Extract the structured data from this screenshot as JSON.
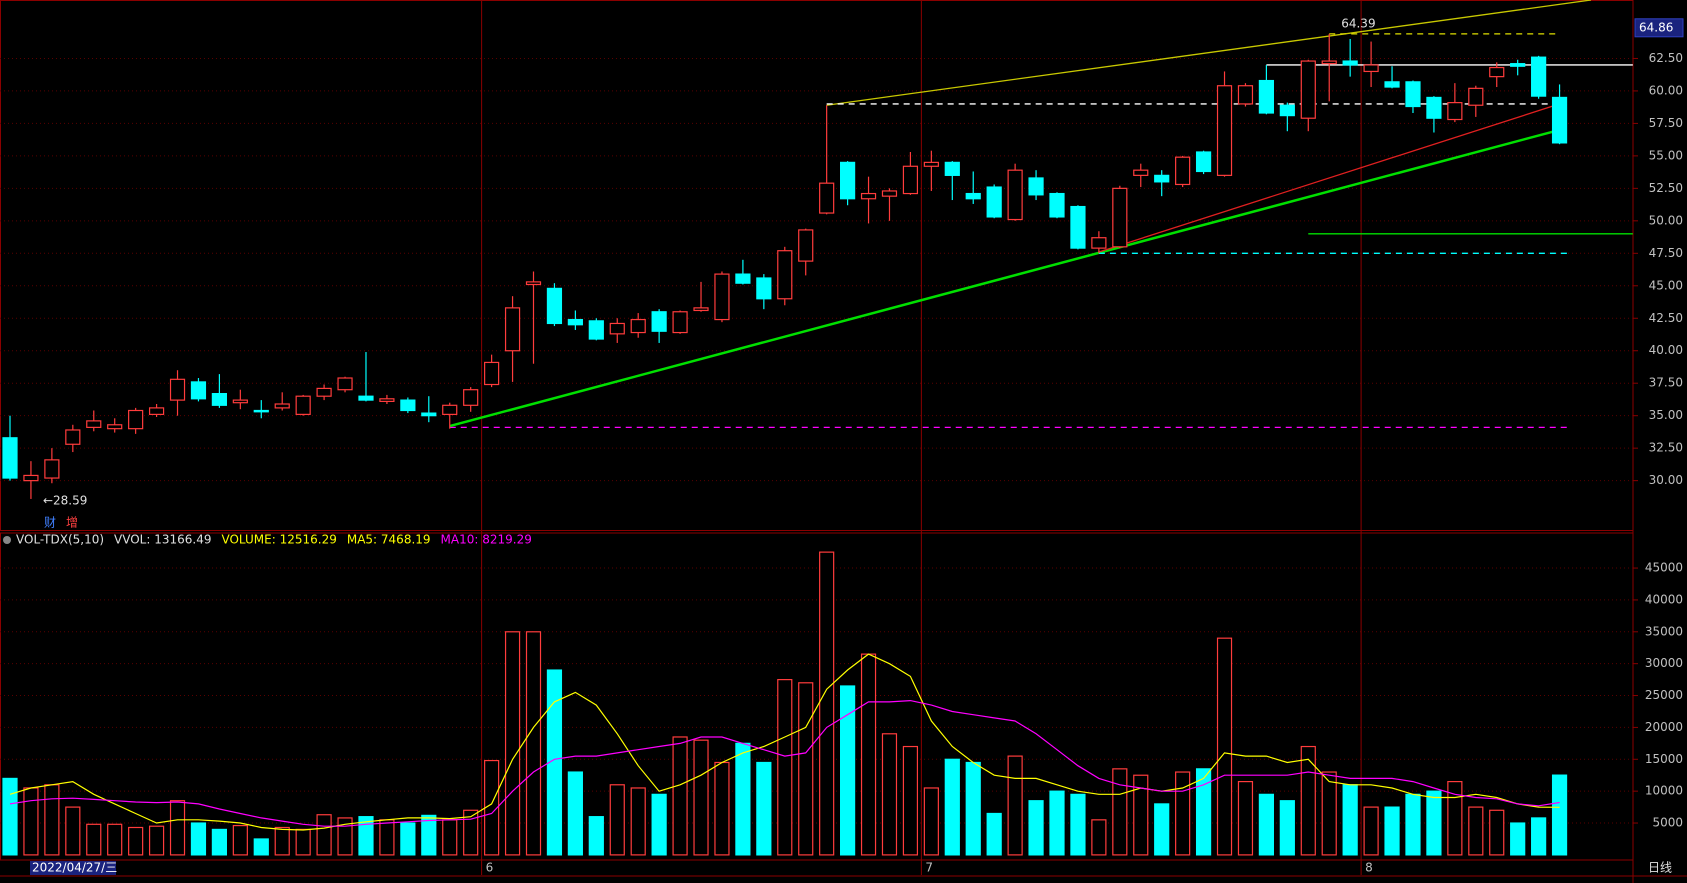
{
  "chart_data": {
    "type": "candlestick",
    "categories": [
      null,
      null,
      null,
      null,
      null,
      null,
      null,
      null,
      null,
      null,
      null,
      null,
      null,
      null,
      null,
      null,
      null,
      null,
      null,
      null,
      null,
      null,
      null,
      "6",
      null,
      null,
      null,
      null,
      null,
      null,
      null,
      null,
      null,
      null,
      null,
      null,
      null,
      null,
      null,
      null,
      null,
      null,
      null,
      null,
      "7",
      null,
      null,
      null,
      null,
      null,
      null,
      null,
      null,
      null,
      null,
      null,
      null,
      null,
      null,
      null,
      null,
      null,
      null,
      null,
      null,
      "8",
      null,
      null,
      null,
      null,
      null,
      null,
      null,
      null,
      null
    ],
    "open": [
      33.3,
      30.0,
      30.2,
      32.8,
      34.1,
      34.0,
      34.0,
      35.1,
      36.2,
      37.6,
      36.7,
      36.0,
      35.4,
      35.6,
      35.1,
      36.5,
      37.0,
      36.5,
      36.1,
      36.2,
      35.2,
      35.1,
      35.8,
      37.4,
      40.0,
      45.1,
      44.8,
      42.4,
      42.3,
      41.3,
      41.4,
      43.0,
      41.4,
      43.1,
      42.4,
      45.9,
      45.6,
      44.0,
      46.9,
      50.6,
      54.5,
      51.7,
      51.9,
      52.1,
      54.2,
      54.5,
      52.1,
      52.6,
      50.1,
      53.3,
      52.1,
      51.1,
      47.9,
      48.0,
      53.5,
      53.5,
      52.8,
      55.3,
      53.5,
      59.0,
      60.8,
      58.9,
      57.9,
      62.1,
      62.3,
      61.5,
      60.7,
      60.7,
      59.5,
      57.8,
      58.9,
      61.1,
      62.1,
      62.6,
      59.5
    ],
    "high": [
      35.0,
      31.5,
      32.5,
      34.3,
      35.4,
      34.8,
      35.6,
      35.9,
      38.5,
      37.9,
      38.2,
      37.0,
      36.2,
      36.8,
      36.6,
      37.4,
      38.0,
      39.9,
      36.6,
      36.4,
      36.5,
      36.0,
      37.2,
      39.7,
      44.2,
      46.1,
      45.2,
      43.1,
      42.5,
      42.5,
      42.9,
      43.2,
      43.1,
      45.3,
      46.1,
      47.0,
      45.9,
      48.0,
      49.4,
      58.9,
      54.6,
      53.4,
      52.5,
      55.3,
      55.4,
      54.6,
      53.8,
      52.8,
      54.4,
      53.9,
      52.2,
      51.2,
      49.2,
      52.7,
      54.4,
      53.9,
      55.0,
      55.4,
      61.5,
      60.6,
      62.0,
      59.1,
      62.4,
      64.39,
      64.0,
      63.8,
      61.9,
      60.8,
      59.6,
      60.6,
      60.4,
      62.2,
      62.4,
      62.7,
      60.5
    ],
    "low": [
      30.0,
      28.59,
      29.8,
      32.2,
      33.8,
      33.7,
      33.6,
      34.9,
      35.0,
      36.1,
      35.6,
      35.5,
      34.8,
      35.4,
      35.0,
      36.2,
      36.8,
      36.1,
      35.9,
      35.2,
      34.5,
      34.0,
      35.3,
      37.2,
      37.6,
      39.0,
      41.9,
      41.6,
      40.8,
      40.6,
      41.0,
      40.6,
      41.3,
      43.0,
      42.2,
      45.1,
      43.2,
      43.5,
      45.8,
      50.5,
      51.2,
      49.8,
      50.0,
      52.0,
      52.3,
      51.6,
      51.3,
      50.2,
      50.0,
      51.6,
      50.2,
      47.8,
      47.5,
      47.9,
      52.6,
      51.9,
      52.6,
      53.6,
      53.4,
      58.8,
      58.2,
      56.9,
      56.9,
      59.2,
      61.1,
      60.3,
      60.2,
      58.3,
      56.8,
      57.6,
      58.0,
      60.3,
      61.2,
      59.4,
      55.9
    ],
    "close": [
      30.2,
      30.4,
      31.6,
      33.9,
      34.6,
      34.3,
      35.4,
      35.6,
      37.8,
      36.3,
      35.8,
      36.2,
      35.3,
      35.9,
      36.5,
      37.1,
      37.9,
      36.2,
      36.3,
      35.4,
      35.0,
      35.8,
      37.0,
      39.1,
      43.3,
      45.3,
      42.1,
      42.0,
      40.9,
      42.1,
      42.4,
      41.5,
      43.0,
      43.3,
      45.9,
      45.2,
      44.0,
      47.7,
      49.3,
      52.9,
      51.7,
      52.1,
      52.3,
      54.2,
      54.5,
      53.5,
      51.7,
      50.3,
      53.9,
      52.0,
      50.3,
      47.9,
      48.7,
      52.5,
      53.9,
      53.0,
      54.9,
      53.8,
      60.4,
      60.4,
      58.3,
      58.1,
      62.3,
      62.3,
      62.0,
      62.0,
      60.3,
      58.8,
      57.9,
      59.1,
      60.2,
      61.8,
      61.9,
      59.6,
      56.0
    ],
    "up_color": "#ff3c3c",
    "down_color": "#00ffff",
    "ylim": [
      26.2,
      67.0
    ],
    "yticks": [
      {
        "value": 30,
        "label": "30.00"
      },
      {
        "value": 32.5,
        "label": "32.50"
      },
      {
        "value": 35,
        "label": "35.00"
      },
      {
        "value": 37.5,
        "label": "37.50"
      },
      {
        "value": 40,
        "label": "40.00"
      },
      {
        "value": 42.5,
        "label": "42.50"
      },
      {
        "value": 45,
        "label": "45.00"
      },
      {
        "value": 47.5,
        "label": "47.50"
      },
      {
        "value": 50,
        "label": "50.00"
      },
      {
        "value": 52.5,
        "label": "52.50"
      },
      {
        "value": 55,
        "label": "55.00"
      },
      {
        "value": 57.5,
        "label": "57.50"
      },
      {
        "value": 60,
        "label": "60.00"
      },
      {
        "value": 62.5,
        "label": "62.50"
      }
    ],
    "last_price": 64.86,
    "annotations": [
      {
        "text": "←28.59",
        "index": 1,
        "value": 28.59
      },
      {
        "text": "64.39",
        "index": 63,
        "value": 64.39
      }
    ],
    "drawings": [
      {
        "color": "#ff00ff",
        "style": "dashed",
        "from": 21,
        "to": 74.5,
        "values": [
          34.1,
          34.1
        ]
      },
      {
        "color": "#00e000",
        "style": "solid",
        "from": 21,
        "to": 74,
        "values": [
          34.2,
          57.0
        ]
      },
      {
        "color": "#e02020",
        "style": "solid",
        "from": 52,
        "to": 74,
        "values": [
          47.6,
          59.0
        ]
      },
      {
        "color": "#c8c800",
        "style": "solid",
        "from": 39,
        "to": 75.5,
        "values": [
          58.9,
          67.0
        ]
      },
      {
        "color": "#ffffff",
        "style": "dashed",
        "from": 39,
        "to": 74,
        "values": [
          59.0,
          59.0
        ]
      },
      {
        "color": "#e0e000",
        "style": "dashed",
        "from": 63,
        "to": 74,
        "values": [
          64.39,
          64.39
        ]
      },
      {
        "color": "#ffffff",
        "style": "solid",
        "from": 60,
        "to": 77.5,
        "values": [
          62.0,
          62.0
        ]
      },
      {
        "color": "#00e000",
        "style": "solid",
        "from": 62,
        "to": 77.5,
        "values": [
          49.0,
          49.0
        ]
      },
      {
        "color": "#00ffff",
        "style": "dashed",
        "from": 52,
        "to": 74.5,
        "values": [
          47.5,
          47.5
        ]
      }
    ],
    "volume": {
      "header": [
        {
          "text": "VOL-TDX(5,10)",
          "color": "#e0e0e0"
        },
        {
          "text": "VVOL: 13166.49",
          "color": "#e0e0e0"
        },
        {
          "text": "VOLUME: 12516.29",
          "color": "#ffff00"
        },
        {
          "text": "MA5: 7468.19",
          "color": "#ffff00"
        },
        {
          "text": "MA10: 8219.29",
          "color": "#ff00ff"
        }
      ],
      "values": [
        12000,
        10500,
        11000,
        7500,
        4800,
        4800,
        4300,
        4500,
        8500,
        5000,
        4000,
        4600,
        2500,
        4300,
        4000,
        6300,
        5800,
        6000,
        5500,
        5000,
        6200,
        5500,
        7000,
        14800,
        35000,
        35000,
        29000,
        13000,
        6000,
        11000,
        10500,
        9500,
        18500,
        18000,
        14500,
        17500,
        14500,
        27500,
        27000,
        47500,
        26500,
        31500,
        19000,
        17000,
        10500,
        15000,
        14500,
        6500,
        15500,
        8500,
        10000,
        9500,
        5500,
        13500,
        12500,
        8000,
        13000,
        13500,
        34000,
        11500,
        9500,
        8500,
        17000,
        13000,
        11000,
        7500,
        7500,
        9500,
        10000,
        11500,
        7500,
        7000,
        5000,
        5800,
        12516.29
      ],
      "series": [
        {
          "name": "MA5",
          "color": "#ffff00",
          "values": [
            9500,
            10500,
            11000,
            11500,
            9500,
            8000,
            6500,
            5000,
            5500,
            5500,
            5300,
            5000,
            4300,
            4000,
            3900,
            4200,
            4800,
            5200,
            5500,
            5800,
            5800,
            5700,
            6000,
            8000,
            15000,
            20000,
            24000,
            25500,
            23500,
            19000,
            14000,
            10000,
            11000,
            12500,
            14500,
            16000,
            17000,
            18500,
            20000,
            26000,
            29000,
            31500,
            30000,
            28000,
            21000,
            17000,
            14500,
            12500,
            12000,
            12000,
            11000,
            10000,
            9500,
            9500,
            10500,
            10000,
            10500,
            12000,
            16000,
            15500,
            15500,
            14500,
            15000,
            11500,
            11000,
            11000,
            10500,
            9500,
            9000,
            9000,
            9500,
            9000,
            8000,
            7500,
            7468.19
          ]
        },
        {
          "name": "MA10",
          "color": "#ff00ff",
          "values": [
            8000,
            8500,
            8800,
            8900,
            8700,
            8500,
            8300,
            8200,
            8300,
            8000,
            7200,
            6500,
            5800,
            5300,
            4800,
            4500,
            4500,
            4800,
            5000,
            5200,
            5400,
            5500,
            5600,
            6500,
            10000,
            13000,
            15000,
            15500,
            15500,
            16000,
            16500,
            17000,
            17500,
            18500,
            18500,
            17500,
            16500,
            15500,
            16000,
            20000,
            22000,
            24000,
            24000,
            24200,
            23500,
            22500,
            22000,
            21500,
            21000,
            19000,
            16500,
            14000,
            12000,
            11000,
            10500,
            10000,
            10000,
            11000,
            12500,
            12500,
            12500,
            12500,
            13000,
            12500,
            12000,
            12000,
            12000,
            11500,
            10500,
            9500,
            9000,
            8800,
            8000,
            7700,
            8219.29
          ]
        }
      ],
      "ylim": [
        -800,
        50500
      ],
      "yticks": [
        5000,
        10000,
        15000,
        20000,
        25000,
        30000,
        35000,
        40000,
        45000
      ]
    },
    "cursor_date": "2022/04/27/三",
    "period": "日线",
    "tags": [
      "财",
      "增"
    ]
  }
}
